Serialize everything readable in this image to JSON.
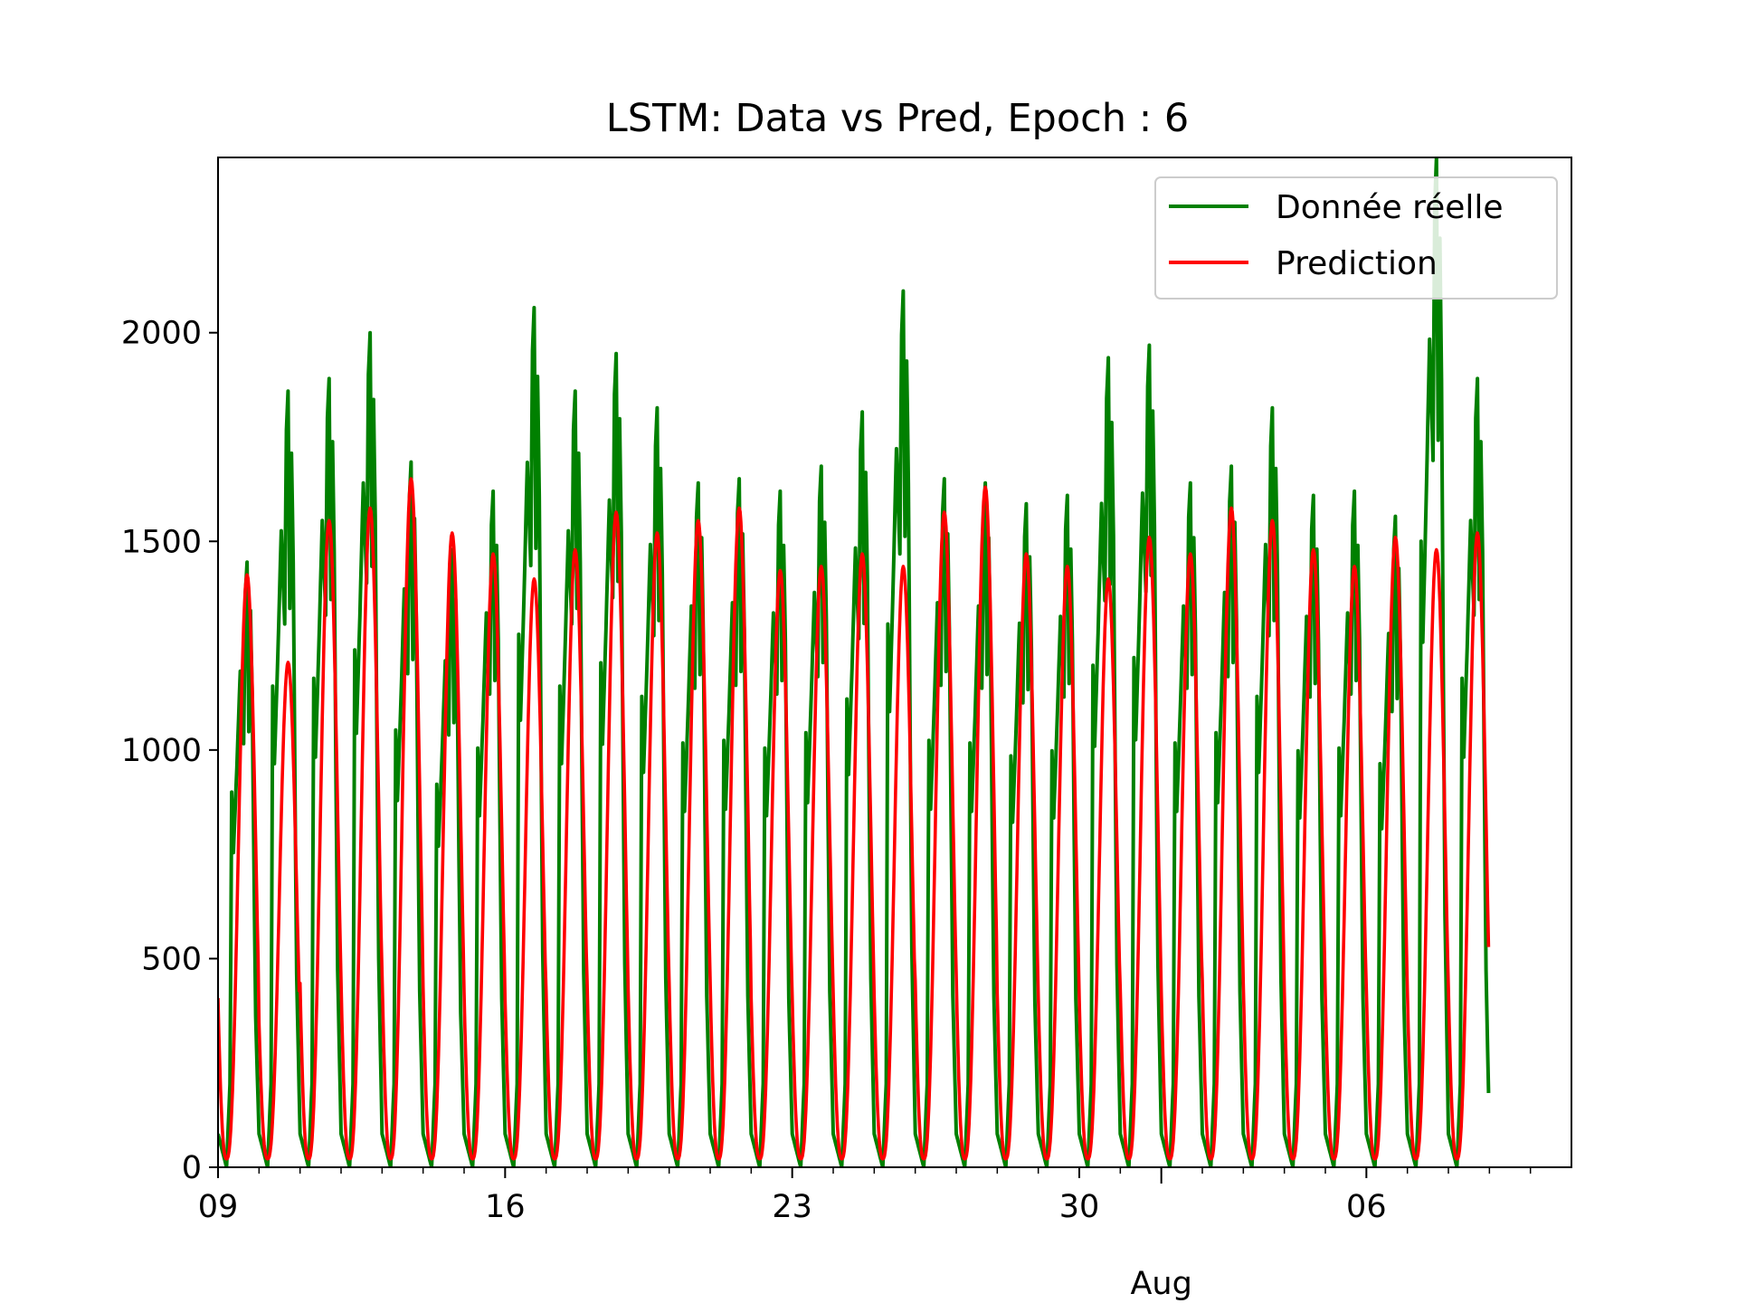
{
  "chart_data": {
    "type": "line",
    "title": "LSTM: Data vs Pred, Epoch : 6",
    "xlabel": "",
    "ylabel": "",
    "x_range": [
      "07-09",
      "08-11"
    ],
    "ylim": [
      0,
      2420
    ],
    "y_ticks": [
      0,
      500,
      1000,
      1500,
      2000
    ],
    "x_ticks": [
      {
        "date": "07-09",
        "label": "09"
      },
      {
        "date": "07-16",
        "label": "16"
      },
      {
        "date": "07-23",
        "label": "23"
      },
      {
        "date": "07-30",
        "label": "30"
      },
      {
        "date": "08-06",
        "label": "06"
      }
    ],
    "x_minor_ticks": [
      "07-10",
      "07-11",
      "07-12",
      "07-13",
      "07-14",
      "07-15",
      "07-17",
      "07-18",
      "07-19",
      "07-20",
      "07-21",
      "07-22",
      "07-24",
      "07-25",
      "07-26",
      "07-27",
      "07-28",
      "07-29",
      "07-31",
      "08-01",
      "08-02",
      "08-03",
      "08-04",
      "08-05",
      "08-07",
      "08-08",
      "08-09",
      "08-10"
    ],
    "x_month_label": {
      "date": "08-01",
      "label": "Aug"
    },
    "grid": false,
    "legend_position": "top-right",
    "series": [
      {
        "name": "Donnée réelle",
        "color": "#008000",
        "daily_peaks": [
          1450,
          1860,
          1890,
          2000,
          1690,
          1480,
          1620,
          2060,
          1860,
          1950,
          1820,
          1640,
          1650,
          1620,
          1680,
          1810,
          2100,
          1650,
          1640,
          1590,
          1610,
          1940,
          1970,
          1640,
          1680,
          1820,
          1610,
          1620,
          1560,
          2420,
          1890
        ]
      },
      {
        "name": "Prediction",
        "color": "#ff0000",
        "daily_peaks": [
          1400,
          1190,
          1530,
          1560,
          1630,
          1500,
          1450,
          1390,
          1460,
          1550,
          1500,
          1530,
          1560,
          1410,
          1420,
          1450,
          1420,
          1550,
          1610,
          1450,
          1420,
          1390,
          1490,
          1450,
          1560,
          1530,
          1460,
          1420,
          1490,
          1460,
          1500
        ]
      }
    ]
  }
}
